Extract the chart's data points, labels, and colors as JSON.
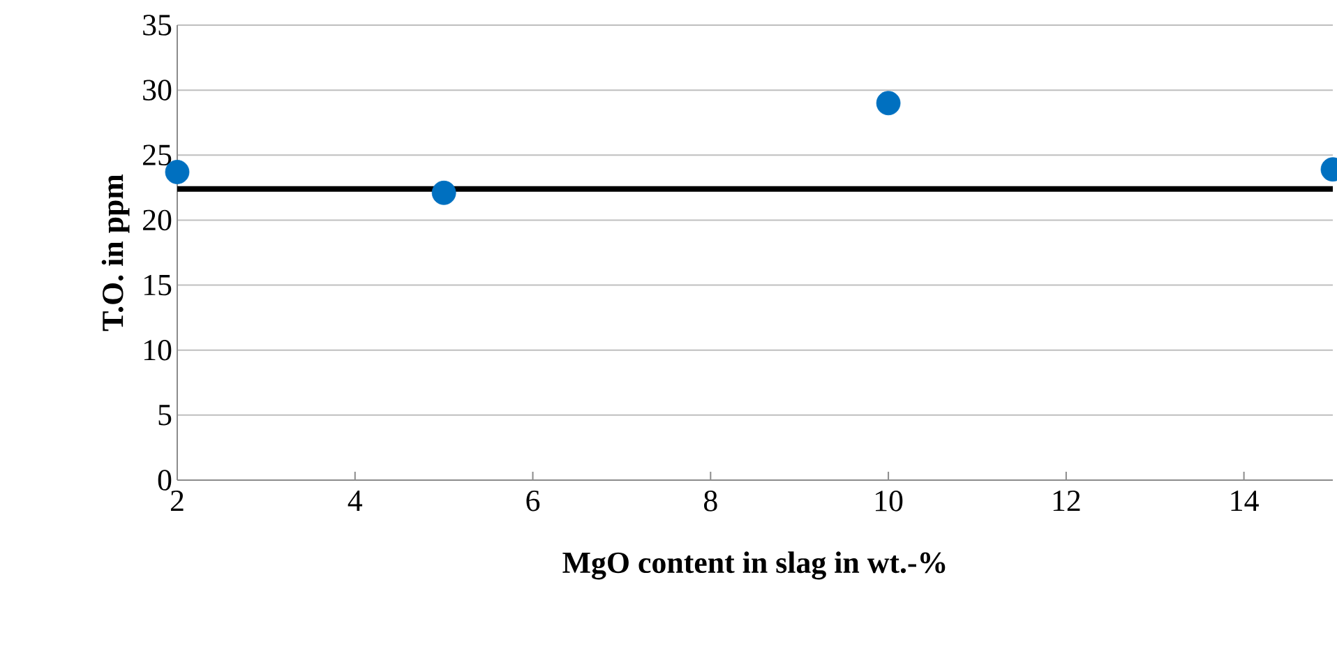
{
  "chart_data": {
    "type": "scatter",
    "xlabel": "MgO content in slag in wt.-%",
    "ylabel": "T.O. in ppm",
    "x": [
      2,
      5,
      10,
      15
    ],
    "series": [
      {
        "color": "#0070c0",
        "values": [
          23.7,
          22.1,
          29.0,
          23.9
        ]
      }
    ],
    "xlim": [
      2,
      15
    ],
    "xticks": [
      2,
      4,
      6,
      8,
      10,
      12,
      14
    ],
    "ylim": [
      0,
      35
    ],
    "yticks": [
      0,
      5,
      10,
      15,
      20,
      25,
      30,
      35
    ],
    "grid": "y",
    "marker": "circle",
    "ref_lines": [
      {
        "axis": "y",
        "value": 22.4,
        "color": "#000000"
      }
    ]
  }
}
